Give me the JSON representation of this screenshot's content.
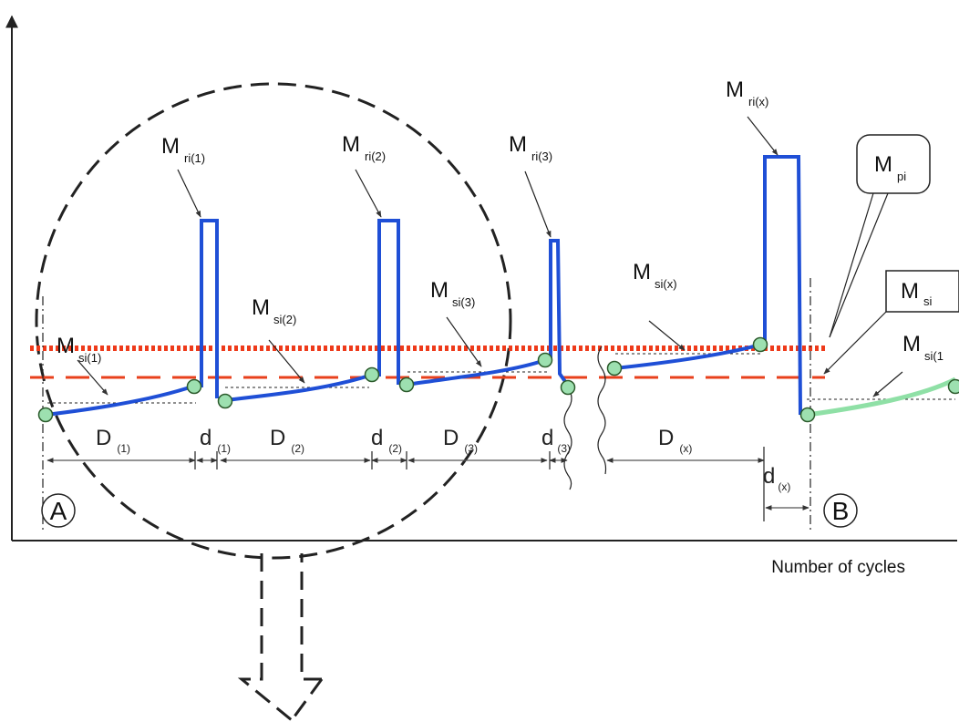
{
  "axis": {
    "x_label": "Number of cycles"
  },
  "labels": {
    "msi1": {
      "main": "M",
      "sub": "si(1)"
    },
    "msi2": {
      "main": "M",
      "sub": "si(2)"
    },
    "msi3": {
      "main": "M",
      "sub": "si(3)"
    },
    "msix": {
      "main": "M",
      "sub": "si(x)"
    },
    "msi1b": {
      "main": "M",
      "sub": "si(1"
    },
    "mri1": {
      "main": "M",
      "sub": "ri(1)"
    },
    "mri2": {
      "main": "M",
      "sub": "ri(2)"
    },
    "mri3": {
      "main": "M",
      "sub": "ri(3)"
    },
    "mrix": {
      "main": "M",
      "sub": "ri(x)"
    },
    "mpi": {
      "main": "M",
      "sub": "pi"
    },
    "msi": {
      "main": "M",
      "sub": "si"
    }
  },
  "dimensions": {
    "D1": {
      "main": "D",
      "sub": "(1)"
    },
    "D2": {
      "main": "D",
      "sub": "(2)"
    },
    "D3": {
      "main": "D",
      "sub": "(3)"
    },
    "Dx": {
      "main": "D",
      "sub": "(x)"
    },
    "d1": {
      "main": "d",
      "sub": "(1)"
    },
    "d2": {
      "main": "d",
      "sub": "(2)"
    },
    "d3": {
      "main": "d",
      "sub": "(3)"
    },
    "dx": {
      "main": "d",
      "sub": "(x)"
    }
  },
  "points": {
    "A": "A",
    "B": "B"
  },
  "colors": {
    "curve": "#1f4fd6",
    "curve_next": "#8fe0a6",
    "threshold_dotted": "#ee3a1a",
    "threshold_dashed": "#e8401c",
    "marker_fill": "#9de0b0",
    "marker_stroke": "#2b5a2b"
  }
}
